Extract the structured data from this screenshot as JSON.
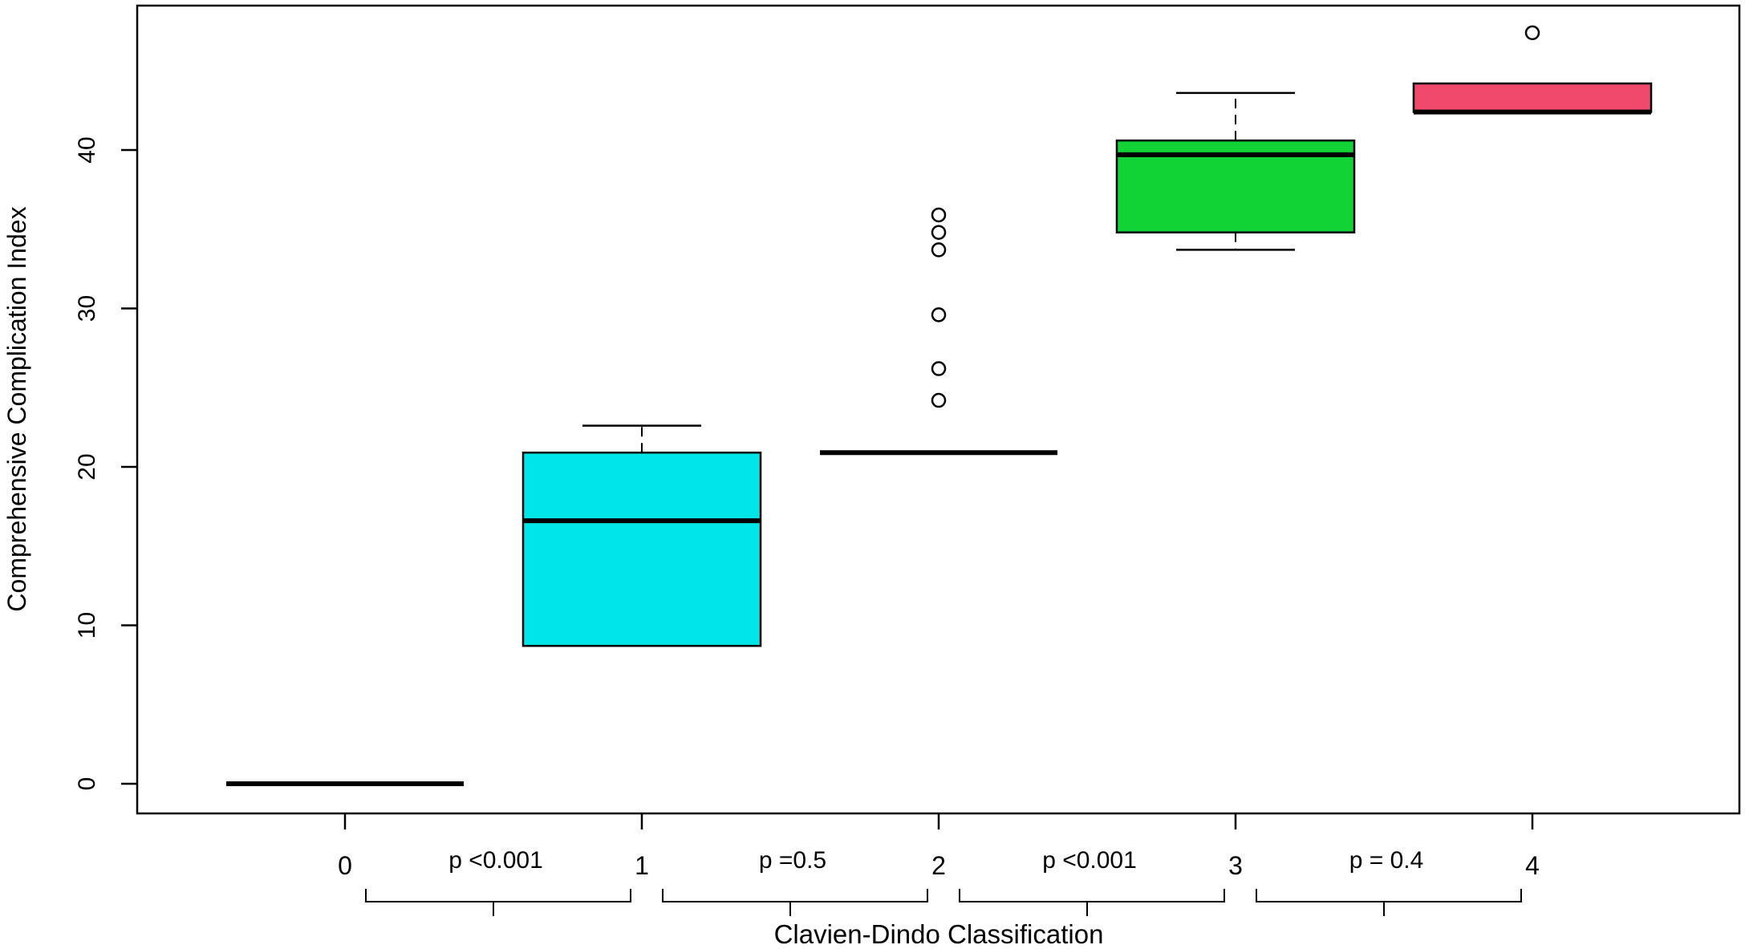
{
  "chart_data": {
    "type": "box",
    "xlabel": "Clavien-Dindo Classification",
    "ylabel": "Comprehensive Complication Index",
    "ylim": [
      -1.5,
      49.5
    ],
    "yticks": [
      "0",
      "10",
      "20",
      "30",
      "40"
    ],
    "ytick_values": [
      0,
      10,
      20,
      30,
      40
    ],
    "categories": [
      "0",
      "1",
      "2",
      "3",
      "4"
    ],
    "boxes": [
      {
        "category": "0",
        "color": "#000000",
        "min": 0,
        "q1": 0,
        "median": 0,
        "q3": 0,
        "max": 0,
        "outliers": []
      },
      {
        "category": "1",
        "color": "#00E5E8",
        "min": 8.7,
        "q1": 8.7,
        "median": 16.6,
        "q3": 20.9,
        "max": 22.6,
        "outliers": []
      },
      {
        "category": "2",
        "color": "#000000",
        "min": 20.9,
        "q1": 20.9,
        "median": 20.9,
        "q3": 20.9,
        "max": 20.9,
        "outliers": [
          24.2,
          26.2,
          29.6,
          33.7,
          34.8,
          35.9
        ]
      },
      {
        "category": "3",
        "color": "#12D335",
        "min": 33.7,
        "q1": 34.8,
        "median": 39.7,
        "q3": 40.6,
        "max": 43.6,
        "outliers": []
      },
      {
        "category": "4",
        "color": "#F0496C",
        "min": 42.4,
        "q1": 42.4,
        "median": 42.4,
        "q3": 44.2,
        "max": 44.2,
        "outliers": [
          47.4
        ]
      }
    ],
    "comparisons": [
      {
        "label": "p <0.001",
        "from": "0",
        "to": "1"
      },
      {
        "label": "p =0.5",
        "from": "1",
        "to": "2"
      },
      {
        "label": "p <0.001",
        "from": "2",
        "to": "3"
      },
      {
        "label": "p = 0.4",
        "from": "3",
        "to": "4"
      }
    ],
    "grid": false,
    "legend": "none"
  }
}
